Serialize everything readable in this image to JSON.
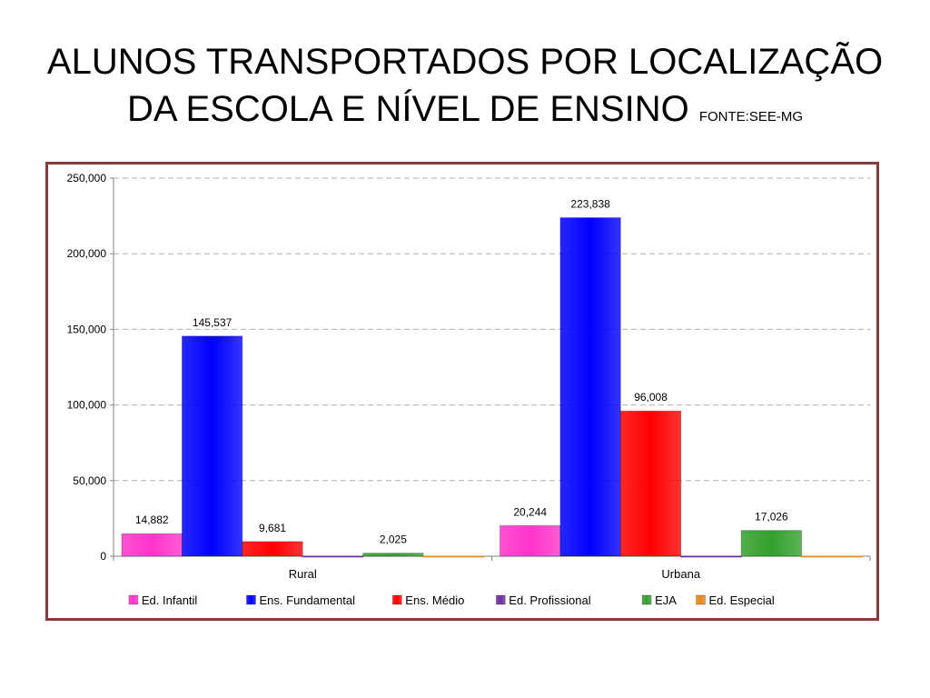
{
  "title": {
    "line1": "ALUNOS TRANSPORTADOS POR LOCALIZAÇÃO",
    "line2": "DA ESCOLA E NÍVEL DE ENSINO",
    "source": "FONTE:SEE-MG"
  },
  "chart_data": {
    "type": "bar",
    "title": "",
    "xlabel": "",
    "ylabel": "",
    "categories": [
      "Rural",
      "Urbana"
    ],
    "ylim": [
      0,
      250000
    ],
    "yticks": [
      0,
      50000,
      100000,
      150000,
      200000,
      250000
    ],
    "ytick_labels": [
      "0",
      "50,000",
      "100,000",
      "150,000",
      "200,000",
      "250,000"
    ],
    "grid": true,
    "legend_position": "bottom",
    "series": [
      {
        "name": "Ed. Infantil",
        "color": "#ff33cc",
        "values": [
          14882,
          20244
        ],
        "labels": [
          "14,882",
          "20,244"
        ]
      },
      {
        "name": "Ens. Fundamental",
        "color": "#0000ff",
        "values": [
          145537,
          223838
        ],
        "labels": [
          "145,537",
          "223,838"
        ]
      },
      {
        "name": "Ens. Médio",
        "color": "#ff0000",
        "values": [
          9681,
          96008
        ],
        "labels": [
          "9,681",
          "96,008"
        ]
      },
      {
        "name": "Ed. Profissional",
        "color": "#7030a0",
        "values": [
          0,
          0
        ],
        "labels": [
          "",
          ""
        ]
      },
      {
        "name": "EJA",
        "color": "#33a02c",
        "values": [
          2025,
          17026
        ],
        "labels": [
          "2,025",
          "17,026"
        ]
      },
      {
        "name": "Ed. Especial",
        "color": "#e8891a",
        "values": [
          0,
          0
        ],
        "labels": [
          "",
          ""
        ]
      }
    ]
  }
}
